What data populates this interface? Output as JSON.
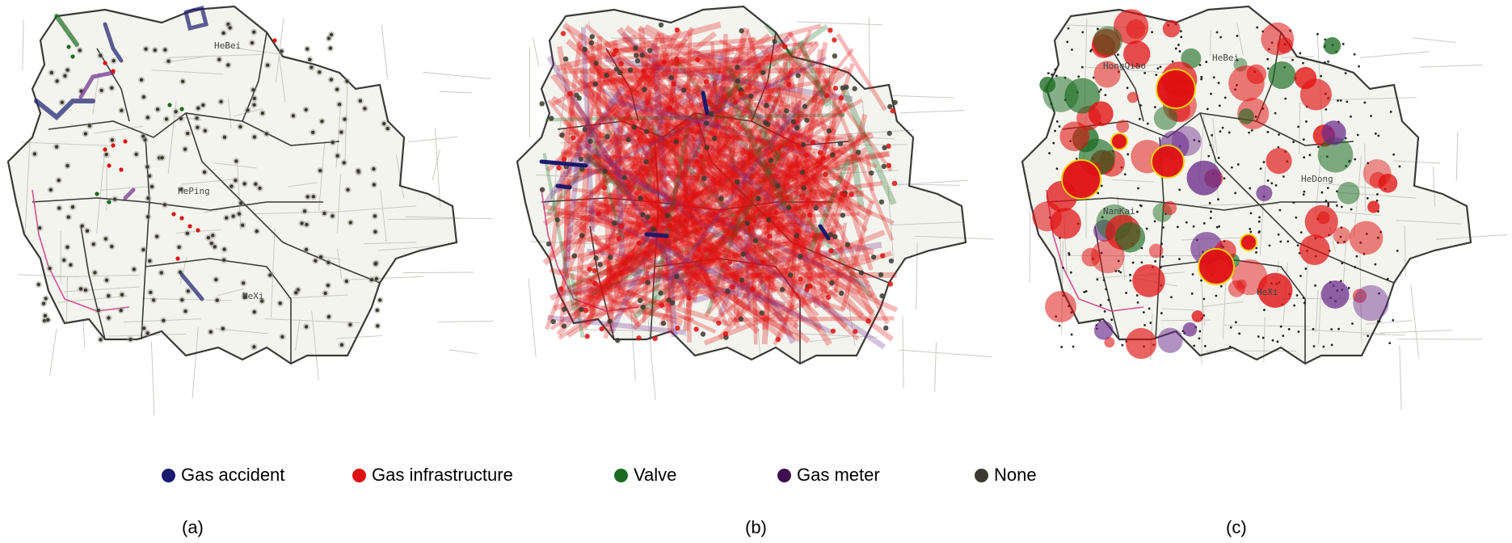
{
  "legend": [
    {
      "label": "Gas accident",
      "color": "#1a1a6e"
    },
    {
      "label": "Gas infrastructure",
      "color": "#e01010"
    },
    {
      "label": "Valve",
      "color": "#1b6b22"
    },
    {
      "label": "Gas meter",
      "color": "#3e1050"
    },
    {
      "label": "None",
      "color": "#3a3a2e"
    }
  ],
  "panels": [
    {
      "caption": "(a)",
      "district_labels": [
        "HeBei",
        "HePing",
        "HeXi"
      ]
    },
    {
      "caption": "(b)"
    },
    {
      "caption": "(c)",
      "district_labels": [
        "HeBei",
        "HongQiao",
        "HeDong",
        "NanKai",
        "HeXi"
      ]
    }
  ],
  "colors": {
    "map_fill": "#f4f4ee",
    "boundary": "#3a3a3a",
    "road": "#c9c9c2",
    "none_node": "#3a3a2e",
    "infra_node": "#e01010",
    "valve_node": "#1b6b22",
    "meter_node": "#6a2a8a",
    "accident_node": "#1a1a6e",
    "highlight_ring": "#f0d000"
  }
}
